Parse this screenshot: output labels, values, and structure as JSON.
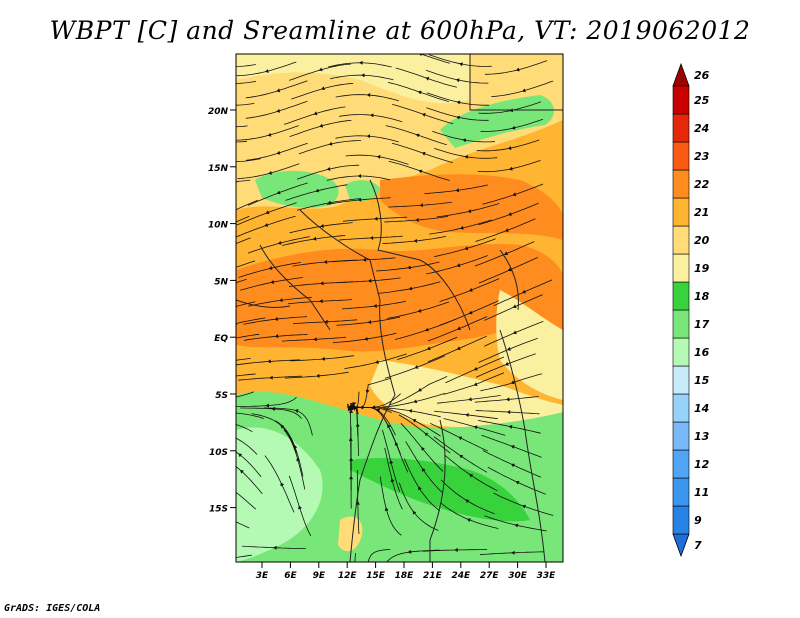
{
  "title": "WBPT [C] and Sreamline at 600hPa, VT: 2019062012",
  "credit": "GrADS: IGES/COLA",
  "map": {
    "lat_labels": [
      "20N",
      "15N",
      "10N",
      "5N",
      "EQ",
      "5S",
      "10S",
      "15S"
    ],
    "lon_labels": [
      "3E",
      "6E",
      "9E",
      "12E",
      "15E",
      "18E",
      "21E",
      "24E",
      "27E",
      "30E",
      "33E"
    ]
  },
  "colorbar": {
    "levels": [
      "7",
      "9",
      "11",
      "12",
      "13",
      "14",
      "15",
      "16",
      "17",
      "18",
      "19",
      "20",
      "21",
      "22",
      "23",
      "24",
      "25",
      "26"
    ],
    "colors": [
      "#1e6edc",
      "#2882e6",
      "#3c96f0",
      "#50a5f5",
      "#78b9fa",
      "#96d2fa",
      "#c8ebfa",
      "#b4fab4",
      "#78e678",
      "#37d23c",
      "#faf0a0",
      "#ffdc78",
      "#ffb432",
      "#ff8c1e",
      "#fa5a14",
      "#e6280a",
      "#c80000",
      "#a00000"
    ]
  }
}
